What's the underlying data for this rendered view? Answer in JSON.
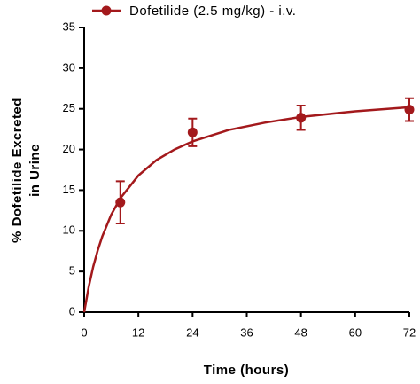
{
  "chart_data": {
    "type": "scatter",
    "ylabel": [
      "% Dofetilide Excreted",
      "in Urine"
    ],
    "xlabel": "Time (hours)",
    "x": [
      8,
      24,
      48,
      72
    ],
    "series": [
      {
        "name": "Dofetilide (2.5 mg/kg) - i.v.",
        "color": "#a3191c",
        "values": [
          13.5,
          22.1,
          23.9,
          24.9
        ],
        "errors": [
          2.6,
          1.7,
          1.5,
          1.4
        ]
      }
    ],
    "fit": {
      "x": [
        0,
        1,
        2,
        3,
        4,
        6,
        8,
        12,
        16,
        20,
        24,
        32,
        40,
        48,
        60,
        72
      ],
      "values": [
        0,
        3.1,
        5.6,
        7.6,
        9.3,
        12,
        14,
        16.8,
        18.7,
        20,
        21,
        22.4,
        23.3,
        24,
        24.7,
        25.2
      ]
    },
    "xlim": [
      0,
      72
    ],
    "xticks": [
      0,
      12,
      24,
      36,
      48,
      60,
      72
    ],
    "ylim": [
      0,
      35
    ],
    "yticks": [
      0,
      5,
      10,
      15,
      20,
      25,
      30,
      35
    ],
    "grid": false,
    "legend": "top"
  }
}
